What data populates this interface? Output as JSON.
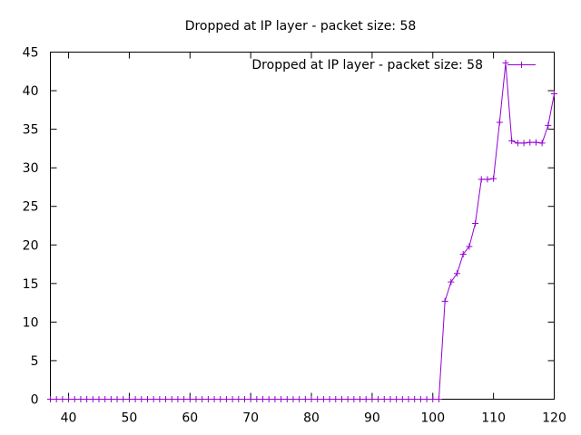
{
  "chart_data": {
    "type": "line",
    "title": "Dropped at IP layer - packet size: 58",
    "xlabel": "",
    "ylabel": "",
    "xlim": [
      37,
      120
    ],
    "ylim": [
      0,
      45
    ],
    "xticks": [
      40,
      50,
      60,
      70,
      80,
      90,
      100,
      110,
      120
    ],
    "yticks": [
      0,
      5,
      10,
      15,
      20,
      25,
      30,
      35,
      40,
      45
    ],
    "grid": false,
    "legend": "top-right",
    "colors": {
      "series": "#9400d3",
      "axis": "#000000"
    },
    "series": [
      {
        "name": "Dropped at IP layer - packet size: 58",
        "x": [
          37,
          38,
          39,
          40,
          41,
          42,
          43,
          44,
          45,
          46,
          47,
          48,
          49,
          50,
          51,
          52,
          53,
          54,
          55,
          56,
          57,
          58,
          59,
          60,
          61,
          62,
          63,
          64,
          65,
          66,
          67,
          68,
          69,
          70,
          71,
          72,
          73,
          74,
          75,
          76,
          77,
          78,
          79,
          80,
          81,
          82,
          83,
          84,
          85,
          86,
          87,
          88,
          89,
          90,
          91,
          92,
          93,
          94,
          95,
          96,
          97,
          98,
          99,
          100,
          101,
          102,
          103,
          104,
          105,
          106,
          107,
          108,
          109,
          110,
          111,
          112,
          113,
          114,
          115,
          116,
          117,
          118,
          119,
          120
        ],
        "y": [
          0,
          0,
          0,
          0,
          0,
          0,
          0,
          0,
          0,
          0,
          0,
          0,
          0,
          0,
          0,
          0,
          0,
          0,
          0,
          0,
          0,
          0,
          0,
          0,
          0,
          0,
          0,
          0,
          0,
          0,
          0,
          0,
          0,
          0,
          0,
          0,
          0,
          0,
          0,
          0,
          0,
          0,
          0,
          0,
          0,
          0,
          0,
          0,
          0,
          0,
          0,
          0,
          0,
          0,
          0,
          0,
          0,
          0,
          0,
          0,
          0,
          0,
          0,
          0,
          0,
          12.7,
          15.2,
          16.3,
          18.8,
          19.8,
          22.8,
          28.5,
          28.5,
          28.6,
          35.9,
          43.6,
          33.5,
          33.2,
          33.2,
          33.3,
          33.3,
          33.2,
          35.5,
          39.6
        ]
      }
    ]
  }
}
